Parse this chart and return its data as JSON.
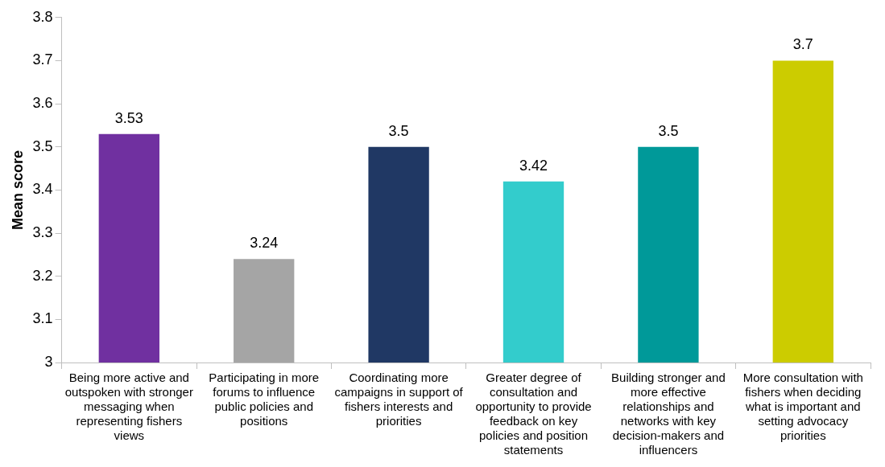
{
  "chart_data": {
    "type": "bar",
    "ylabel": "Mean score",
    "categories": [
      "Being more active and outspoken with stronger messaging when representing fishers views",
      "Participating in more forums to influence public policies and positions",
      "Coordinating more campaigns in support of fishers interests and priorities",
      "Greater degree of consultation and opportunity to provide feedback on key policies and position statements",
      "Building stronger and more effective relationships and networks with key decision-makers and influencers",
      "More consultation with fishers when deciding what is important and setting advocacy priorities"
    ],
    "values": [
      3.53,
      3.24,
      3.5,
      3.42,
      3.5,
      3.7
    ],
    "colors": [
      "#7030a0",
      "#a5a5a5",
      "#203864",
      "#33cccc",
      "#009999",
      "#cccc00"
    ],
    "ylim": [
      3,
      3.8
    ],
    "yticks": [
      3,
      3.1,
      3.2,
      3.3,
      3.4,
      3.5,
      3.6,
      3.7,
      3.8
    ],
    "grid": false,
    "legend": false,
    "data_labels": true
  }
}
